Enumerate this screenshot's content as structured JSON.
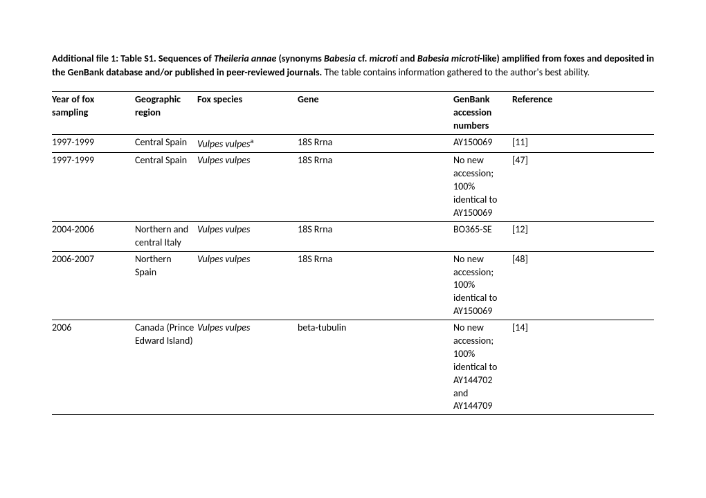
{
  "caption": {
    "prefix": "Additional file 1: Table S1. Sequences of ",
    "species1": "Theileria annae",
    "mid1": " (synonyms ",
    "species2": "Babesia",
    "mid2": " cf. ",
    "species3": "microti",
    "mid3": " and ",
    "species4": "Babesia microti",
    "suffixBold": "-like) amplified from foxes and deposited in the GenBank database and/or published in peer-reviewed journals. ",
    "normal": "The table contains information gathered to the author's best ability."
  },
  "headers": {
    "year": "Year of fox sampling",
    "region": "Geographic region",
    "species": "Fox species",
    "gene": "Gene",
    "accession": "GenBank accession numbers",
    "reference": "Reference"
  },
  "rows": [
    {
      "year": "1997-1999",
      "region": "Central Spain",
      "species": "Vulpes vulpes",
      "speciesSup": "a",
      "gene": "18S Rrna",
      "accession": "AY150069",
      "reference": "[11]"
    },
    {
      "year": "1997-1999",
      "region": "Central Spain",
      "species": "Vulpes vulpes",
      "speciesSup": "",
      "gene": "18S Rrna",
      "accession": "No new accession; 100% identical to AY150069",
      "reference": "[47]"
    },
    {
      "year": "2004-2006",
      "region": "Northern and central Italy",
      "species": "Vulpes vulpes",
      "speciesSup": "",
      "gene": "18S Rrna",
      "accession": "BO365-SE",
      "reference": "[12]"
    },
    {
      "year": "2006-2007",
      "region": "Northern Spain",
      "species": "Vulpes vulpes",
      "speciesSup": "",
      "gene": "18S Rrna",
      "accession": "No new accession; 100% identical to AY150069",
      "reference": "[48]"
    },
    {
      "year": "2006",
      "region": "Canada (Prince Edward Island)",
      "species": "Vulpes vulpes",
      "speciesSup": "",
      "gene": "beta-tubulin",
      "accession": "No new accession; 100% identical to AY144702 and AY144709",
      "reference": "[14]"
    }
  ]
}
